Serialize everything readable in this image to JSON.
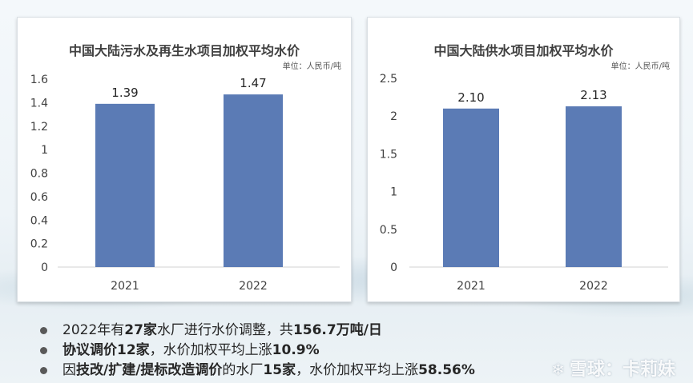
{
  "chart_data": [
    {
      "type": "bar",
      "title": "中国大陆污水及再生水项目加权平均水价",
      "unit_note": "单位：人民币/吨",
      "categories": [
        "2021",
        "2022"
      ],
      "values": [
        1.39,
        1.47
      ],
      "data_labels": [
        "1.39",
        "1.47"
      ],
      "ylim": [
        0,
        1.6
      ],
      "yticks": [
        "0",
        "0.2",
        "0.4",
        "0.6",
        "0.8",
        "1",
        "1.2",
        "1.4",
        "1.6"
      ],
      "ytick_values": [
        0,
        0.2,
        0.4,
        0.6,
        0.8,
        1,
        1.2,
        1.4,
        1.6
      ],
      "bar_color": "#5b7bb5",
      "grid": false
    },
    {
      "type": "bar",
      "title": "中国大陆供水项目加权平均水价",
      "unit_note": "单位：人民币/吨",
      "categories": [
        "2021",
        "2022"
      ],
      "values": [
        2.1,
        2.13
      ],
      "data_labels": [
        "2.10",
        "2.13"
      ],
      "ylim": [
        0,
        2.5
      ],
      "yticks": [
        "0",
        "0.5",
        "1",
        "1.5",
        "2",
        "2.5"
      ],
      "ytick_values": [
        0,
        0.5,
        1,
        1.5,
        2,
        2.5
      ],
      "bar_color": "#5b7bb5",
      "grid": false
    }
  ],
  "bullets": [
    {
      "parts": [
        {
          "text": "2022年有",
          "bold": false
        },
        {
          "text": "27家",
          "bold": true
        },
        {
          "text": "水厂进行水价调整，共",
          "bold": false
        },
        {
          "text": "156.7万吨/日",
          "bold": true
        }
      ]
    },
    {
      "parts": [
        {
          "text": "协议调价12家",
          "bold": true
        },
        {
          "text": "，水价加权平均上涨",
          "bold": false
        },
        {
          "text": "10.9%",
          "bold": true
        }
      ]
    },
    {
      "parts": [
        {
          "text": "因",
          "bold": false
        },
        {
          "text": "技改/扩建/提标改造调价",
          "bold": true
        },
        {
          "text": "的水厂",
          "bold": false
        },
        {
          "text": "15家",
          "bold": true
        },
        {
          "text": "，水价加权平均上涨",
          "bold": false
        },
        {
          "text": "58.56%",
          "bold": true
        }
      ]
    }
  ],
  "watermark": {
    "text": "雪球：卡莉妹",
    "icon": "snowball-icon"
  }
}
